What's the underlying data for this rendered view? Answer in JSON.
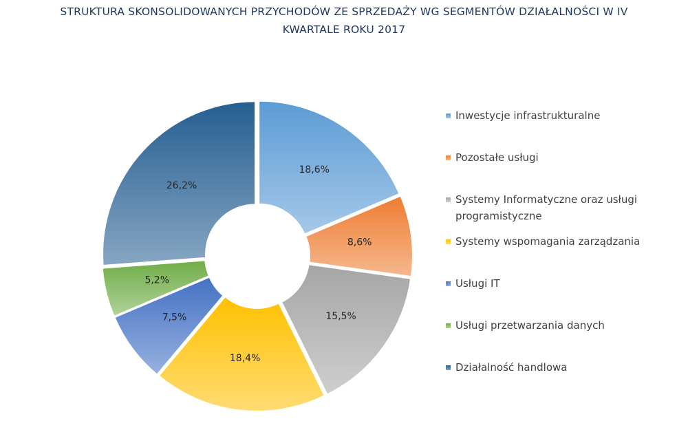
{
  "title": {
    "line1": "STRUKTURA SKONSOLIDOWANYCH PRZYCHODÓW ZE SPRZEDAŻY WG SEGMENTÓW DZIAŁALNOŚCI W IV",
    "line2": "KWARTALE ROKU 2017"
  },
  "chart_data": {
    "type": "pie",
    "variant": "donut",
    "title": "STRUKTURA SKONSOLIDOWANYCH PRZYCHODÓW ZE SPRZEDAŻY WG SEGMENTÓW DZIAŁALNOŚCI W IV KWARTALE ROKU 2017",
    "legend_position": "right",
    "slices": [
      {
        "label": "Inwestycje infrastrukturalne",
        "value": 18.6,
        "value_label": "18,6%",
        "color": "#5b9bd5"
      },
      {
        "label": "Pozostałe usługi",
        "value": 8.6,
        "value_label": "8,6%",
        "color": "#ed7d31"
      },
      {
        "label": "Systemy Informatyczne oraz usługi programistyczne",
        "value": 15.5,
        "value_label": "15,5%",
        "color": "#a5a5a5"
      },
      {
        "label": "Systemy wspomagania zarządzania",
        "value": 18.4,
        "value_label": "18,4%",
        "color": "#ffc000"
      },
      {
        "label": "Usługi IT",
        "value": 7.5,
        "value_label": "7,5%",
        "color": "#4472c4"
      },
      {
        "label": "Usługi przetwarzania danych",
        "value": 5.2,
        "value_label": "5,2%",
        "color": "#70ad47"
      },
      {
        "label": "Działalność handlowa",
        "value": 26.2,
        "value_label": "26,2%",
        "color": "#255e91"
      }
    ]
  }
}
